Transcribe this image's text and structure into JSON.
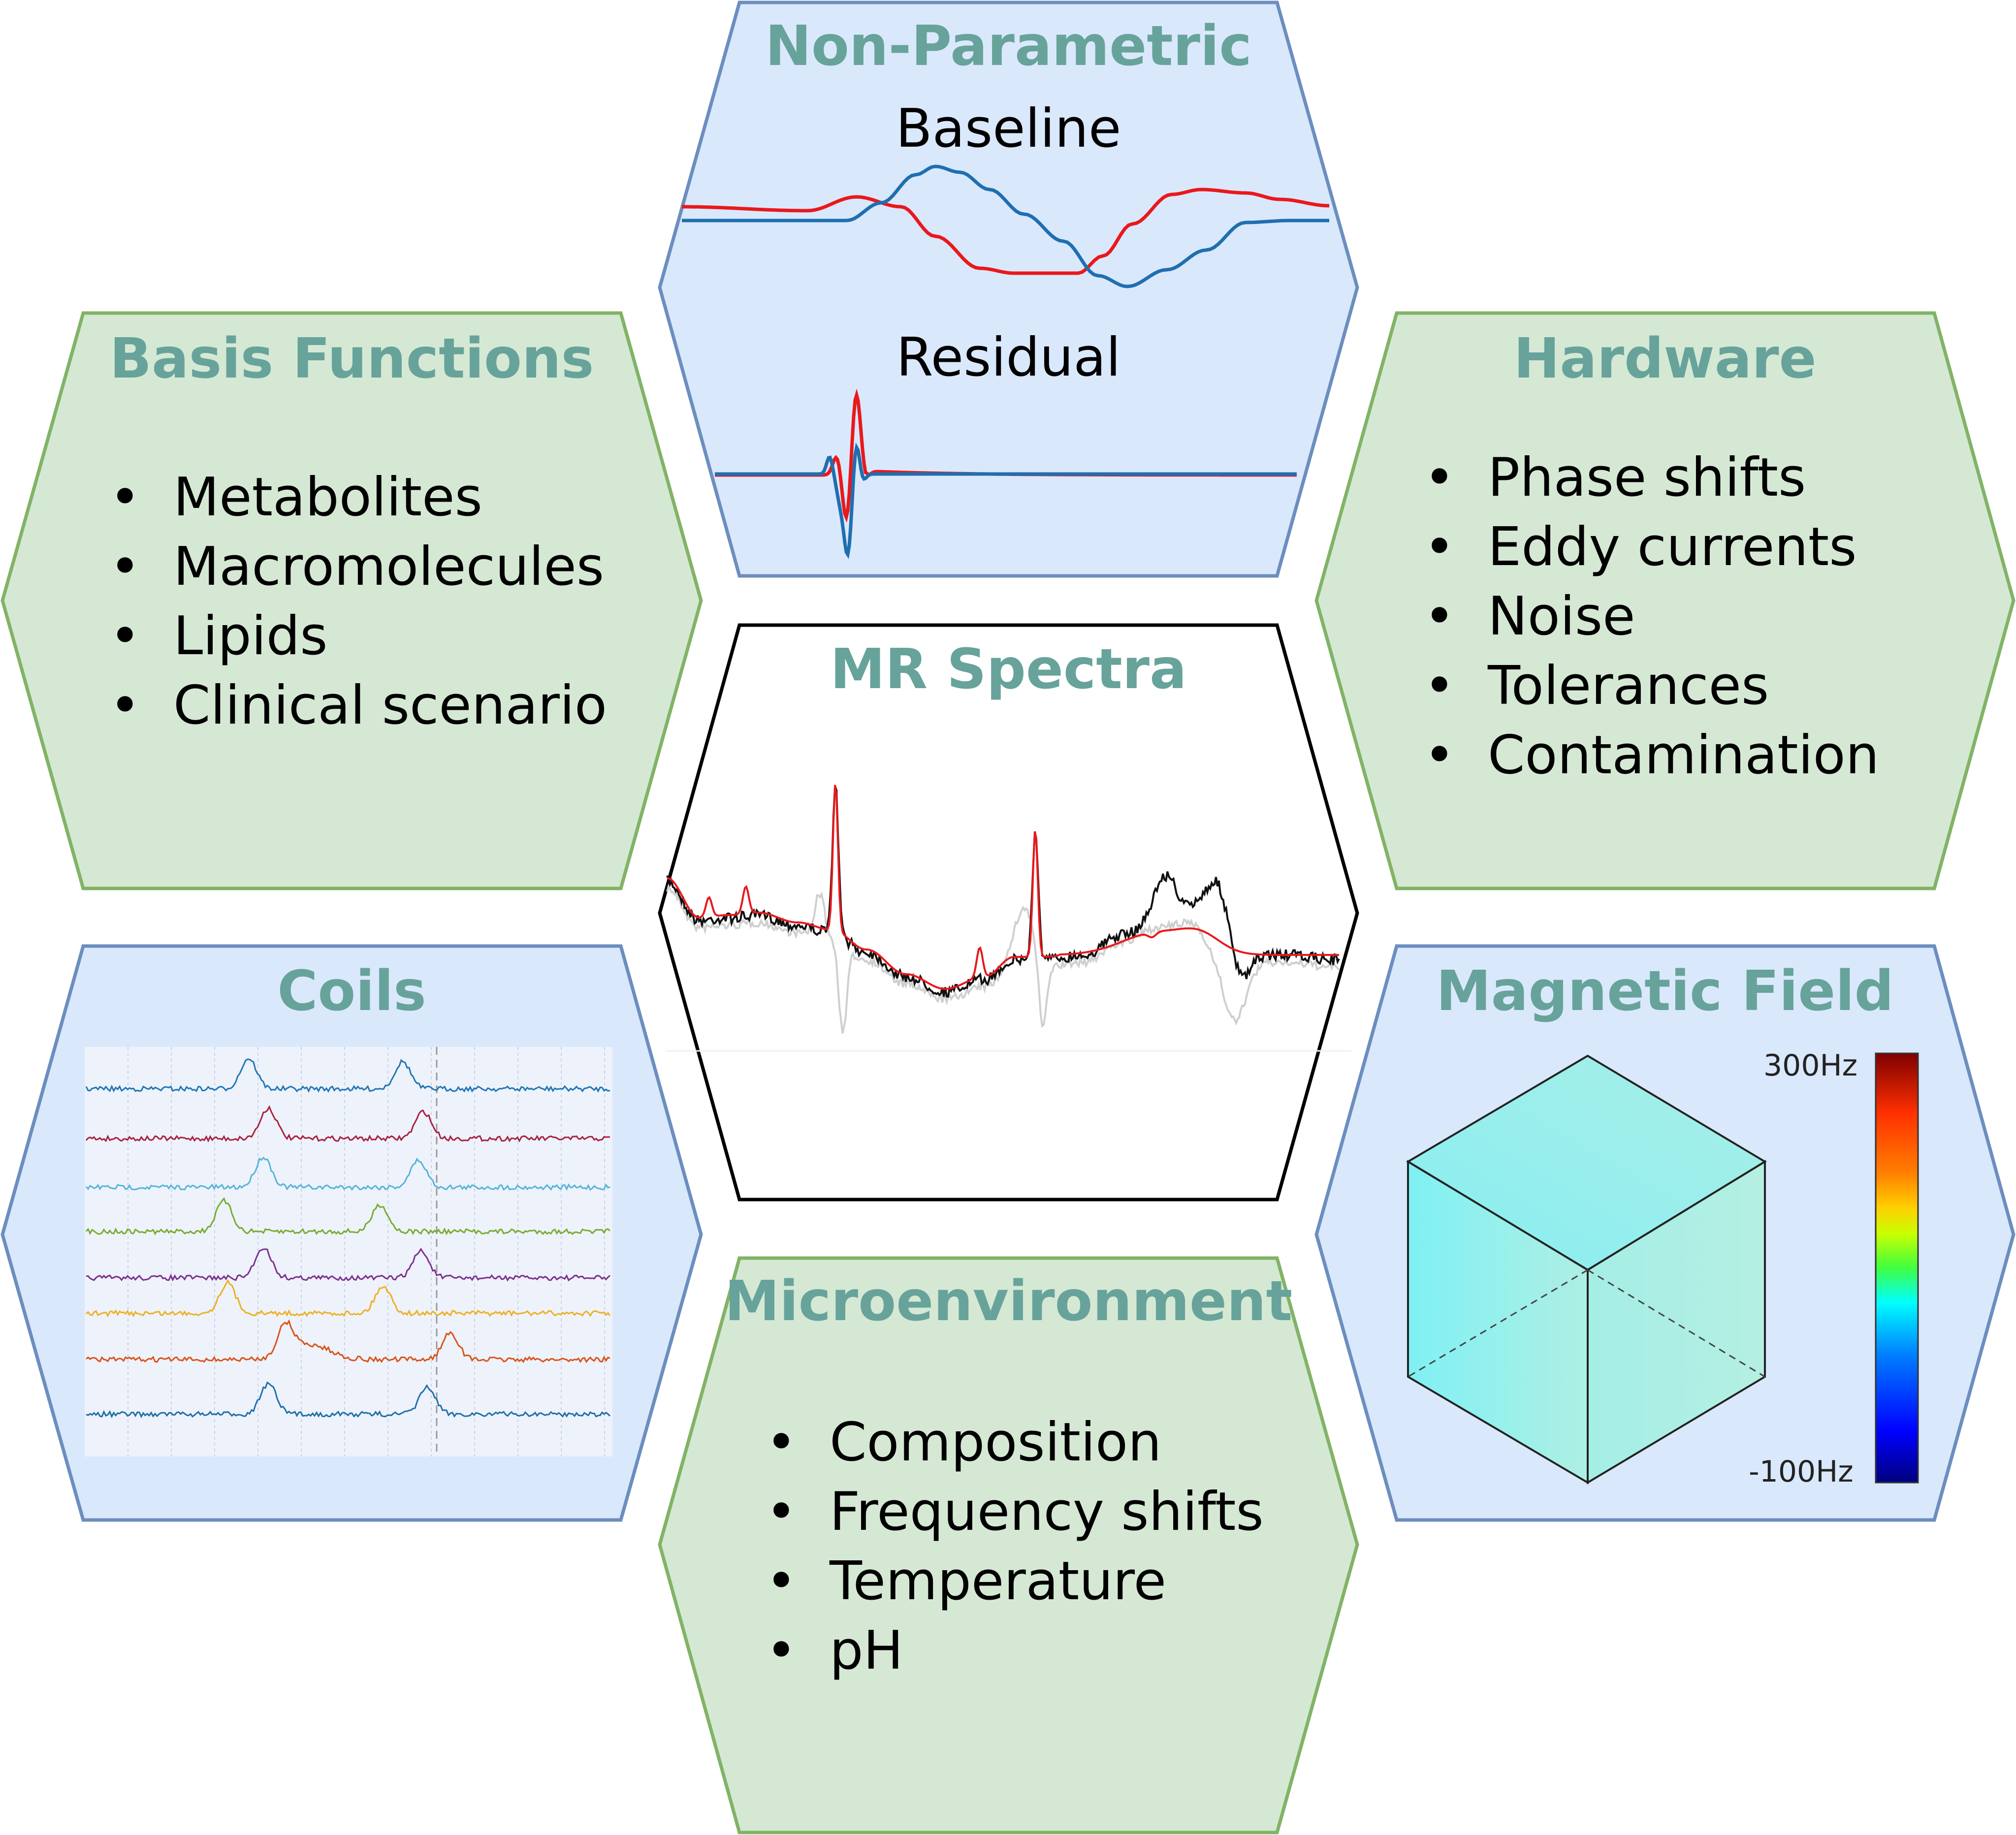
{
  "hexagons": {
    "non_parametric": {
      "title": "Non-Parametric",
      "baseline_label": "Baseline",
      "residual_label": "Residual"
    },
    "basis_functions": {
      "title": "Basis Functions",
      "items": [
        "Metabolites",
        "Macromolecules",
        "Lipids",
        "Clinical scenario"
      ]
    },
    "hardware": {
      "title": "Hardware",
      "items": [
        "Phase shifts",
        "Eddy currents",
        "Noise",
        "Tolerances",
        "Contamination"
      ]
    },
    "mr_spectra": {
      "title": "MR Spectra"
    },
    "coils": {
      "title": "Coils"
    },
    "magnetic_field": {
      "title": "Magnetic Field",
      "colorbar_max": "300Hz",
      "colorbar_min": "-100Hz"
    },
    "microenvironment": {
      "title": "Microenvironment",
      "items": [
        "Composition",
        "Frequency shifts",
        "Temperature",
        "pH"
      ]
    }
  },
  "colors": {
    "blue_fill": "#dae8fc",
    "blue_stroke": "#6c8ebf",
    "green_fill": "#d5e8d4",
    "green_stroke": "#82b366",
    "title": "#67a39a",
    "red_trace": "#e8191c",
    "blue_trace": "#1f6fb0",
    "coil_traces": [
      "#1f77b4",
      "#a8213f",
      "#56b4d8",
      "#77ac30",
      "#7e2f8e",
      "#edb120",
      "#d95319",
      "#1f6fa8"
    ]
  }
}
